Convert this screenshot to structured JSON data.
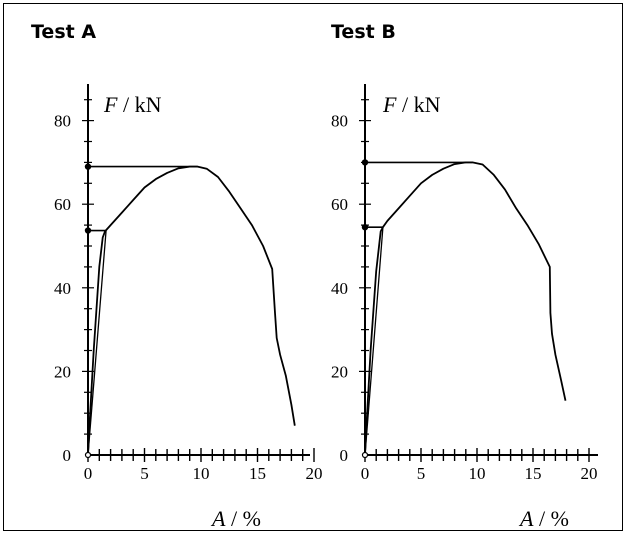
{
  "chart_data": [
    {
      "type": "line",
      "title": "Test A",
      "xlabel": {
        "symbol": "A",
        "unit": " / %"
      },
      "ylabel": {
        "symbol": "F",
        "unit": " / kN"
      },
      "xlim": [
        0,
        20
      ],
      "ylim": [
        0,
        80
      ],
      "x_ticks": [
        "0",
        "5",
        "10",
        "15",
        "20"
      ],
      "y_ticks": [
        "0",
        "20",
        "40",
        "60",
        "80"
      ],
      "grid": false,
      "series": [
        {
          "x": [
            0,
            0.15,
            0.5,
            1.0,
            1.3,
            1.5,
            2.0,
            3.0,
            4.0,
            5.0,
            6.0,
            7.0,
            8.0,
            9.0,
            9.7,
            10.5,
            11.5,
            12.5,
            13.5,
            14.5,
            15.5,
            16.3,
            16.55,
            16.7,
            17.0,
            17.5,
            18.0,
            18.3
          ],
          "y": [
            0,
            8,
            25,
            45,
            52,
            53.5,
            55,
            58,
            61,
            64,
            66,
            67.5,
            68.6,
            69,
            69,
            68.5,
            66.5,
            63,
            59,
            55,
            50,
            44.5,
            34,
            28,
            24,
            19,
            12,
            7
          ]
        }
      ],
      "reference_lines": [
        {
          "y": 53.7,
          "x_to": 1.6,
          "marker": "dot"
        },
        {
          "y": 69,
          "x_to": 9.7,
          "marker": "dot"
        }
      ]
    },
    {
      "type": "line",
      "title": "Test B",
      "xlabel": {
        "symbol": "A",
        "unit": " / %"
      },
      "ylabel": {
        "symbol": "F",
        "unit": " / kN"
      },
      "xlim": [
        0,
        20
      ],
      "ylim": [
        0,
        80
      ],
      "x_ticks": [
        "0",
        "5",
        "10",
        "15",
        "20"
      ],
      "y_ticks": [
        "0",
        "20",
        "40",
        "60",
        "80"
      ],
      "grid": false,
      "series": [
        {
          "x": [
            0,
            0.15,
            0.5,
            1.0,
            1.4,
            1.6,
            2.0,
            3.0,
            4.0,
            5.0,
            6.0,
            7.0,
            8.0,
            9.0,
            9.6,
            10.5,
            11.5,
            12.5,
            13.5,
            14.5,
            15.5,
            16.5,
            16.55,
            16.7,
            17.0,
            17.5,
            17.9
          ],
          "y": [
            0,
            8,
            25,
            44,
            53.5,
            54.5,
            56,
            59,
            62,
            65,
            67,
            68.5,
            69.6,
            70,
            70,
            69.5,
            67,
            63.5,
            59,
            55,
            50.5,
            45,
            34,
            29,
            24,
            18,
            13
          ]
        }
      ],
      "reference_lines": [
        {
          "y": 54.5,
          "x_to": 1.6,
          "marker": "dot"
        },
        {
          "y": 70,
          "x_to": 9.6,
          "marker": "dot"
        }
      ]
    }
  ]
}
